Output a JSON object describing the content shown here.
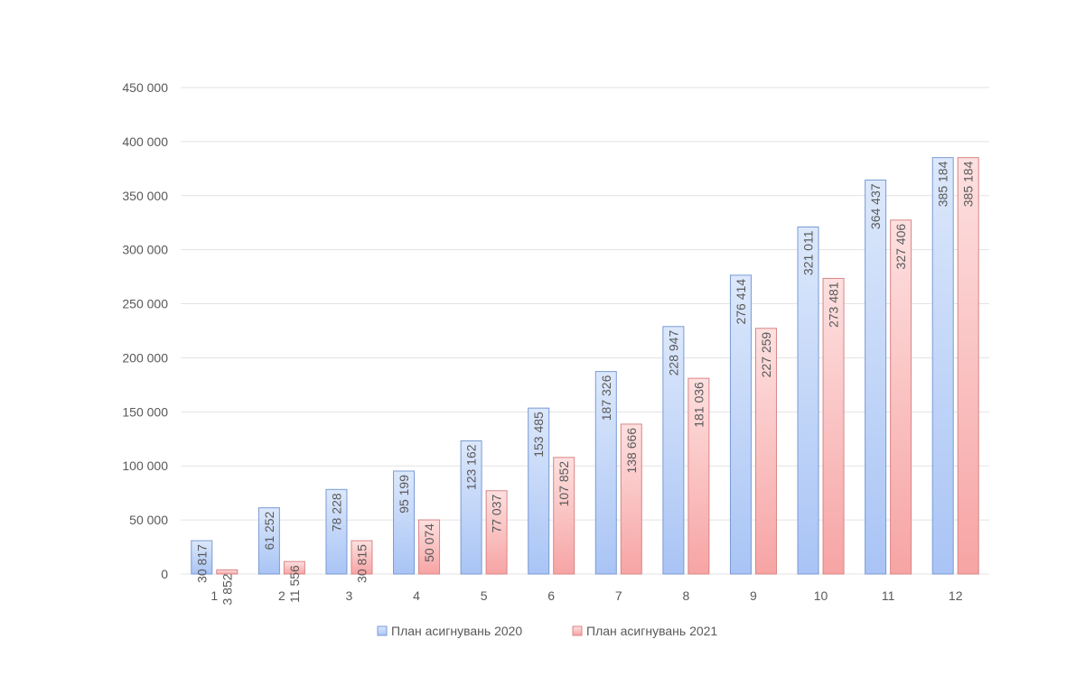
{
  "chart_data": {
    "type": "bar",
    "categories": [
      "1",
      "2",
      "3",
      "4",
      "5",
      "6",
      "7",
      "8",
      "9",
      "10",
      "11",
      "12"
    ],
    "series": [
      {
        "name": "План асигнувань 2020",
        "values": [
          30817,
          61252,
          78228,
          95199,
          123162,
          153485,
          187326,
          228947,
          276414,
          321011,
          364437,
          385184
        ],
        "labels": [
          "30 817",
          "61 252",
          "78 228",
          "95 199",
          "123 162",
          "153 485",
          "187 326",
          "228 947",
          "276 414",
          "321 011",
          "364 437",
          "385 184"
        ],
        "color_top": "#dce8fb",
        "color_bottom": "#a9c4f5",
        "stroke": "#7a9ad4"
      },
      {
        "name": "План асигнувань 2021",
        "values": [
          3852,
          11556,
          30815,
          50074,
          77037,
          107852,
          138666,
          181036,
          227259,
          273481,
          327406,
          385184
        ],
        "labels": [
          "3 852",
          "11 556",
          "30 815",
          "50 074",
          "77 037",
          "107 852",
          "138 666",
          "181 036",
          "227 259",
          "273 481",
          "327 406",
          "385 184"
        ],
        "color_top": "#fde0e0",
        "color_bottom": "#f7a4a4",
        "stroke": "#d98585"
      }
    ],
    "yticks": [
      "0",
      "50 000",
      "100 000",
      "150 000",
      "200 000",
      "250 000",
      "300 000",
      "350 000",
      "400 000",
      "450 000"
    ],
    "ylim": [
      0,
      450000
    ],
    "grid": true,
    "legend_position": "bottom",
    "title": "",
    "xlabel": "",
    "ylabel": ""
  }
}
